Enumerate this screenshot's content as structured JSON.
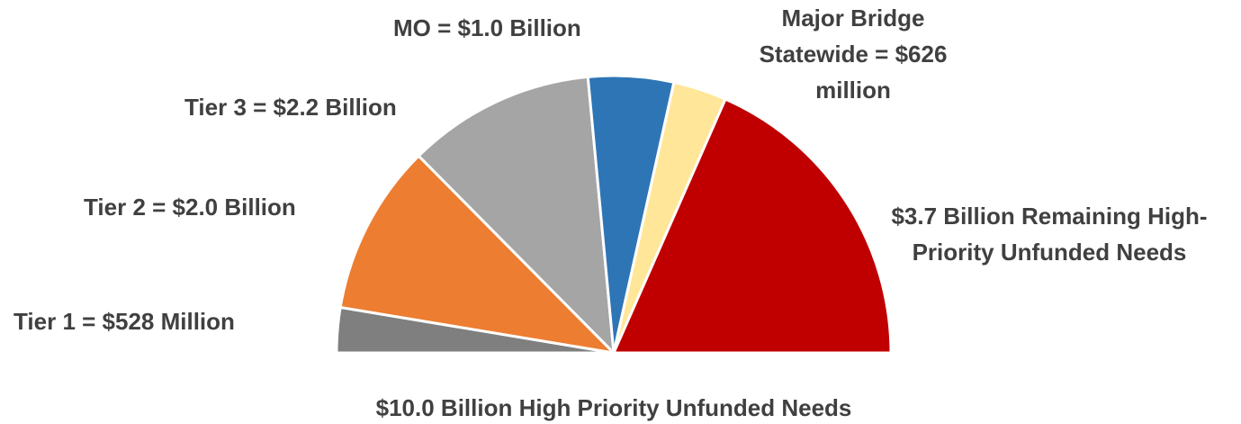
{
  "chart_data": {
    "type": "pie",
    "subtype": "half-donut (semicircle)",
    "title": "$10.0 Billion High Priority Unfunded Needs",
    "total_billion": 10.0,
    "slices": [
      {
        "key": "tier1",
        "label_lines": [
          "Tier 1 = $528 Million"
        ],
        "value_billion": 0.528,
        "color": "#7f7f7f"
      },
      {
        "key": "tier2",
        "label_lines": [
          "Tier 2 = $2.0 Billion"
        ],
        "value_billion": 2.0,
        "color": "#ed7d31"
      },
      {
        "key": "tier3",
        "label_lines": [
          "Tier 3 = $2.2 Billion"
        ],
        "value_billion": 2.2,
        "color": "#a5a5a5"
      },
      {
        "key": "mo",
        "label_lines": [
          "MO = $1.0 Billion"
        ],
        "value_billion": 1.0,
        "color": "#2e75b6"
      },
      {
        "key": "major-bridge",
        "label_lines": [
          "Major Bridge",
          "Statewide = $626",
          "million"
        ],
        "value_billion": 0.626,
        "color": "#ffe699"
      },
      {
        "key": "remaining",
        "label_lines": [
          "$3.7 Billion Remaining High-",
          "Priority Unfunded Needs"
        ],
        "value_billion": 3.7,
        "color": "#c00000"
      }
    ],
    "legend": "none (labels placed outside slices)"
  }
}
